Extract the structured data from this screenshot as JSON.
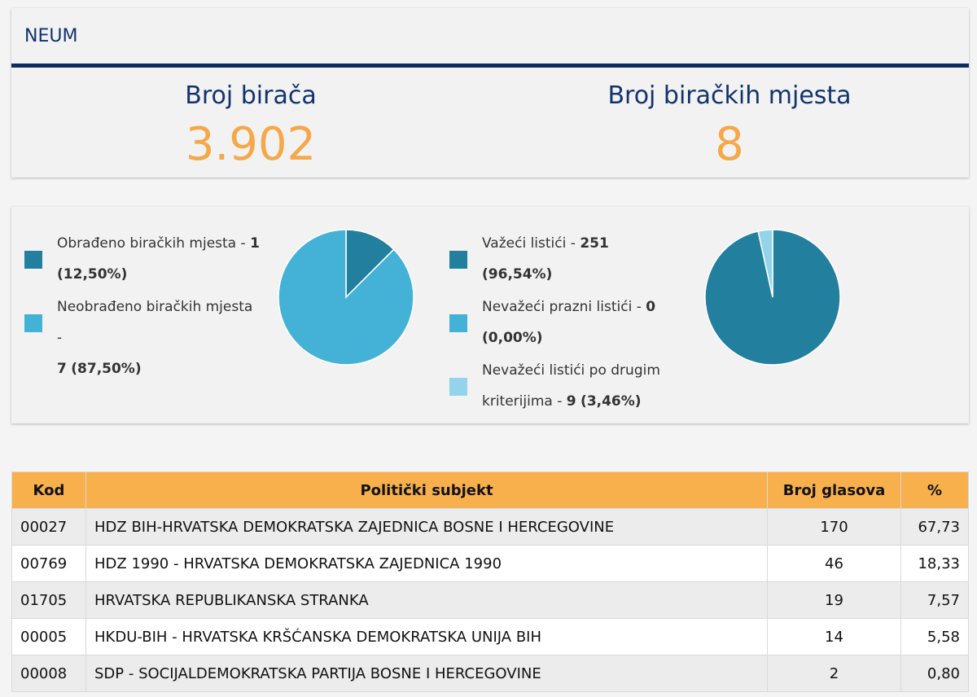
{
  "municipality": "NEUM",
  "stats": [
    {
      "label": "Broj birača",
      "value": "3.902"
    },
    {
      "label": "Broj biračkih mjesta",
      "value": "8"
    }
  ],
  "colors": {
    "dark_teal": "#237f9e",
    "light_teal": "#44b2d6",
    "pale_blue": "#93d3eb",
    "navy": "#0d2b5e",
    "orange": "#f5a84a",
    "table_header": "#f8b04d"
  },
  "chart_data": [
    {
      "type": "pie",
      "series": [
        {
          "name": "Obrađeno biračkih mjesta",
          "value": 1,
          "percent": "12,50%"
        },
        {
          "name": "Neobrađeno biračkih mjesta",
          "value": 7,
          "percent": "87,50%"
        }
      ]
    },
    {
      "type": "pie",
      "series": [
        {
          "name": "Važeći listići",
          "value": 251,
          "percent": "96,54%"
        },
        {
          "name": "Nevažeći prazni listići",
          "value": 0,
          "percent": "0,00%"
        },
        {
          "name": "Nevažeći listići po drugim kriterijima",
          "value": 9,
          "percent": "3,46%"
        }
      ]
    }
  ],
  "table": {
    "headers": {
      "code": "Kod",
      "party": "Politički subjekt",
      "votes": "Broj glasova",
      "pct": "%"
    },
    "rows": [
      {
        "code": "00027",
        "party": "HDZ BIH-HRVATSKA DEMOKRATSKA ZAJEDNICA BOSNE I HERCEGOVINE",
        "votes": "170",
        "pct": "67,73"
      },
      {
        "code": "00769",
        "party": "HDZ 1990 - HRVATSKA DEMOKRATSKA ZAJEDNICA 1990",
        "votes": "46",
        "pct": "18,33"
      },
      {
        "code": "01705",
        "party": "HRVATSKA REPUBLIKANSKA STRANKA",
        "votes": "19",
        "pct": "7,57"
      },
      {
        "code": "00005",
        "party": "HKDU-BIH - HRVATSKA KRŠĆANSKA DEMOKRATSKA UNIJA BIH",
        "votes": "14",
        "pct": "5,58"
      },
      {
        "code": "00008",
        "party": "SDP - SOCIJALDEMOKRATSKA PARTIJA BOSNE I HERCEGOVINE",
        "votes": "2",
        "pct": "0,80"
      }
    ]
  }
}
